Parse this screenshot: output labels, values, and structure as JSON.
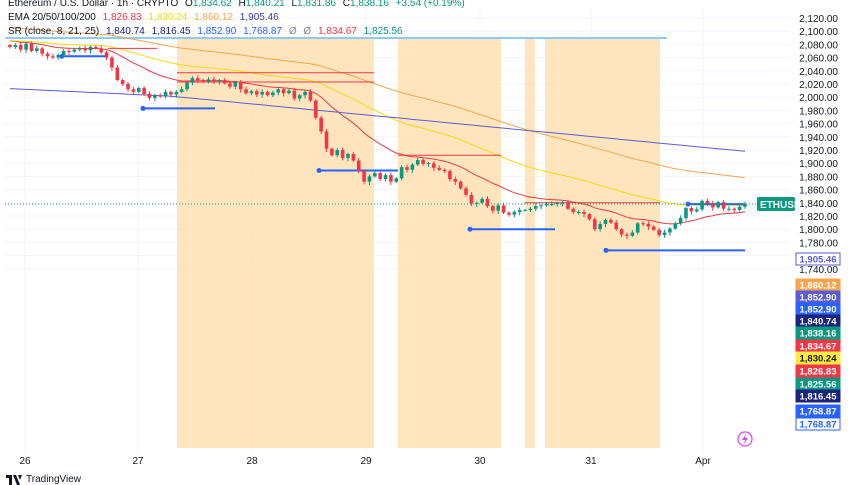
{
  "legend": {
    "line1": {
      "symbol": "Ethereum / U.S. Dollar · 1h · CRYPTO",
      "o_label": "O",
      "o": "1,834.62",
      "h_label": "H",
      "h": "1,840.21",
      "l_label": "L",
      "l": "1,831.86",
      "c_label": "C",
      "c": "1,838.16",
      "change": "+3.54 (+0.19%)"
    },
    "line2": {
      "name": "EMA 20/50/100/200",
      "v1": "1,826.83",
      "v2": "1,830.24",
      "v3": "1,860.12",
      "v4": "1,905.46"
    },
    "line3": {
      "name": "SR (close, 8, 21, 25)",
      "v1": "1,840.74",
      "v2": "1,816.45",
      "v3": "1,852.90",
      "v4": "1,768.87",
      "v5": "Ø",
      "v6": "Ø",
      "v7": "1,834.67",
      "v8": "1,825.56"
    }
  },
  "footer": {
    "brand": "TradingView"
  },
  "colors": {
    "up": "#089981",
    "down": "#f23645",
    "ema20": "#f23645",
    "ema50": "#ffeb3b",
    "ema100": "#f7a44a",
    "ema200": "#5b5bd6",
    "zone": "#ffe0b2",
    "support": "#2962ff",
    "resistance": "#f23645"
  },
  "chart_data": {
    "type": "candlestick",
    "title": "Ethereum / U.S. Dollar · 1h · CRYPTO",
    "x_ticks": [
      "26",
      "27",
      "28",
      "29",
      "30",
      "31",
      "Apr"
    ],
    "y_ticks": [
      "2,120.00",
      "2,100.00",
      "2,080.00",
      "2,060.00",
      "2,040.00",
      "2,020.00",
      "2,000.00",
      "1,980.00",
      "1,960.00",
      "1,940.00",
      "1,920.00",
      "1,900.00",
      "1,880.00",
      "1,860.00",
      "1,840.00",
      "1,820.00",
      "1,800.00",
      "1,780.00",
      "1,760.00",
      "1,740.00"
    ],
    "ylim": [
      1733,
      2130
    ],
    "price_tags": [
      {
        "label": "1,905.46",
        "value": 1905.46,
        "color": "#5b5bd6",
        "outline": true
      },
      {
        "label": "1,860.12",
        "value": 1860.12,
        "color": "#f7a44a"
      },
      {
        "label": "1,852.90",
        "value": 1852.9,
        "color": "#5b5bd6"
      },
      {
        "label": "1,852.90",
        "value": 1852.9,
        "color": "#2962ff"
      },
      {
        "label": "1,840.74",
        "value": 1840.74,
        "color": "#1a237e"
      },
      {
        "label": "1,838.16",
        "value": 1838.16,
        "color": "#089981"
      },
      {
        "label": "1,834.67",
        "value": 1834.67,
        "color": "#f23645"
      },
      {
        "label": "1,830.24",
        "value": 1830.24,
        "color": "#ffeb3b"
      },
      {
        "label": "1,826.83",
        "value": 1826.83,
        "color": "#f23645"
      },
      {
        "label": "1,825.56",
        "value": 1825.56,
        "color": "#089981"
      },
      {
        "label": "1,816.45",
        "value": 1816.45,
        "color": "#1a237e"
      },
      {
        "label": "1,768.87",
        "value": 1768.87,
        "color": "#2962ff"
      },
      {
        "label": "1,768.87",
        "value": 1768.87,
        "color": "#2962ff",
        "outline": true
      }
    ],
    "current_label": "ETHUSD",
    "current_price": 1838.16,
    "candles_close": [
      2076,
      2079,
      2072,
      2081,
      2070,
      2074,
      2066,
      2062,
      2060,
      2064,
      2070,
      2069,
      2072,
      2074,
      2071,
      2076,
      2074,
      2068,
      2060,
      2045,
      2026,
      2020,
      2012,
      2008,
      2014,
      2005,
      1999,
      2003,
      2001,
      2008,
      2004,
      2008,
      2012,
      2022,
      2029,
      2026,
      2024,
      2027,
      2024,
      2026,
      2021,
      2016,
      2023,
      2012,
      2006,
      2009,
      2004,
      2008,
      2003,
      2007,
      2012,
      2006,
      2010,
      1998,
      2003,
      2008,
      1995,
      1969,
      1948,
      1922,
      1912,
      1920,
      1908,
      1914,
      1904,
      1888,
      1872,
      1880,
      1885,
      1876,
      1882,
      1872,
      1877,
      1894,
      1890,
      1898,
      1905,
      1899,
      1900,
      1893,
      1890,
      1888,
      1876,
      1872,
      1862,
      1852,
      1839,
      1840,
      1846,
      1835,
      1828,
      1836,
      1825,
      1822,
      1826,
      1829,
      1829,
      1831,
      1835,
      1836,
      1838,
      1838,
      1840,
      1840,
      1831,
      1826,
      1826,
      1823,
      1815,
      1800,
      1808,
      1814,
      1810,
      1800,
      1792,
      1790,
      1795,
      1809,
      1808,
      1804,
      1799,
      1791,
      1795,
      1801,
      1809,
      1817,
      1832,
      1827,
      1830,
      1843,
      1839,
      1833,
      1841,
      1831,
      1831,
      1829,
      1834,
      1838
    ]
  }
}
